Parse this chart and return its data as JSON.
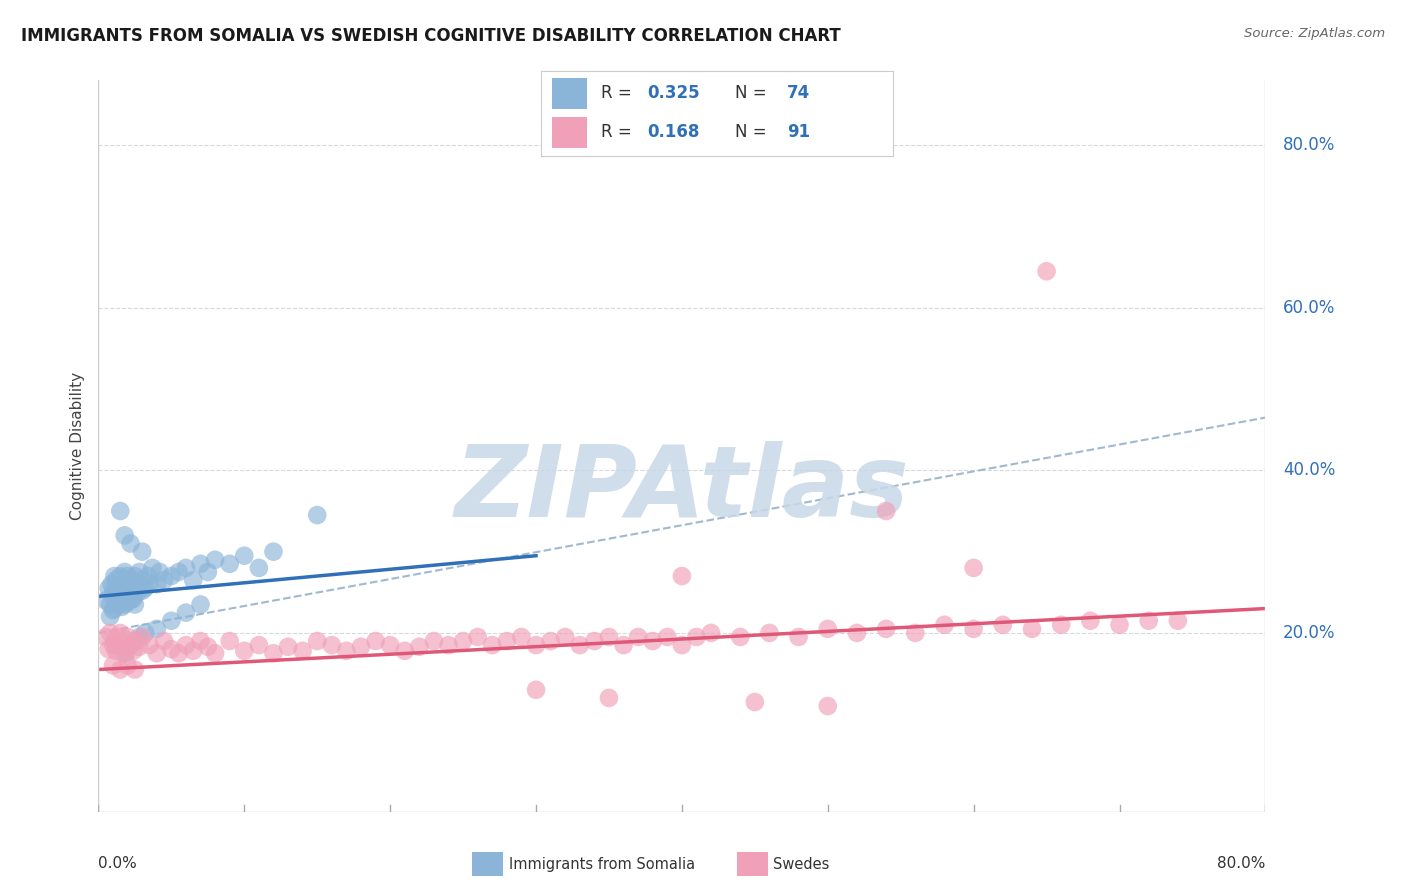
{
  "title": "IMMIGRANTS FROM SOMALIA VS SWEDISH COGNITIVE DISABILITY CORRELATION CHART",
  "source": "Source: ZipAtlas.com",
  "ylabel": "Cognitive Disability",
  "xmin": 0.0,
  "xmax": 0.8,
  "ymin": -0.02,
  "ymax": 0.88,
  "ytick_vals": [
    0.2,
    0.4,
    0.6,
    0.8
  ],
  "ytick_labels": [
    "20.0%",
    "40.0%",
    "60.0%",
    "80.0%"
  ],
  "blue_color": "#8ab4d8",
  "pink_color": "#f0a0b8",
  "blue_line_color": "#3070b8",
  "pink_line_color": "#e05878",
  "dash_color": "#a0b8d0",
  "legend_text_color": "#3070b8",
  "watermark_color": "#c8d8e8",
  "title_color": "#1a1a1a",
  "source_color": "#666666",
  "grid_color": "#d8d8e0",
  "axis_color": "#cccccc",
  "blue_line_x0": 0.0,
  "blue_line_y0": 0.245,
  "blue_line_x1": 0.3,
  "blue_line_y1": 0.295,
  "pink_line_x0": 0.0,
  "pink_line_y0": 0.155,
  "pink_line_x1": 0.8,
  "pink_line_y1": 0.23,
  "dash_line_x0": 0.0,
  "dash_line_y0": 0.2,
  "dash_line_x1": 0.8,
  "dash_line_y1": 0.465,
  "blue_x": [
    0.005,
    0.007,
    0.008,
    0.009,
    0.01,
    0.01,
    0.011,
    0.011,
    0.012,
    0.012,
    0.013,
    0.013,
    0.014,
    0.014,
    0.015,
    0.015,
    0.016,
    0.016,
    0.017,
    0.017,
    0.018,
    0.018,
    0.019,
    0.02,
    0.02,
    0.021,
    0.022,
    0.022,
    0.023,
    0.024,
    0.025,
    0.025,
    0.026,
    0.027,
    0.028,
    0.03,
    0.032,
    0.034,
    0.035,
    0.037,
    0.04,
    0.042,
    0.045,
    0.05,
    0.055,
    0.06,
    0.065,
    0.07,
    0.075,
    0.08,
    0.09,
    0.1,
    0.11,
    0.12,
    0.03,
    0.018,
    0.022,
    0.015,
    0.019,
    0.012,
    0.025,
    0.028,
    0.032,
    0.04,
    0.05,
    0.06,
    0.07,
    0.15,
    0.008,
    0.01,
    0.016,
    0.02,
    0.024,
    0.03
  ],
  "blue_y": [
    0.24,
    0.255,
    0.235,
    0.26,
    0.25,
    0.245,
    0.27,
    0.23,
    0.255,
    0.265,
    0.24,
    0.25,
    0.26,
    0.235,
    0.27,
    0.245,
    0.255,
    0.24,
    0.265,
    0.25,
    0.275,
    0.235,
    0.26,
    0.245,
    0.27,
    0.25,
    0.24,
    0.265,
    0.255,
    0.245,
    0.27,
    0.235,
    0.26,
    0.25,
    0.275,
    0.265,
    0.255,
    0.27,
    0.26,
    0.28,
    0.26,
    0.275,
    0.265,
    0.27,
    0.275,
    0.28,
    0.265,
    0.285,
    0.275,
    0.29,
    0.285,
    0.295,
    0.28,
    0.3,
    0.3,
    0.32,
    0.31,
    0.35,
    0.175,
    0.185,
    0.19,
    0.195,
    0.2,
    0.205,
    0.215,
    0.225,
    0.235,
    0.345,
    0.22,
    0.228,
    0.232,
    0.238,
    0.242,
    0.252
  ],
  "pink_x": [
    0.005,
    0.007,
    0.008,
    0.01,
    0.011,
    0.012,
    0.013,
    0.014,
    0.015,
    0.016,
    0.017,
    0.018,
    0.019,
    0.02,
    0.022,
    0.024,
    0.026,
    0.028,
    0.03,
    0.035,
    0.04,
    0.045,
    0.05,
    0.055,
    0.06,
    0.065,
    0.07,
    0.075,
    0.08,
    0.09,
    0.1,
    0.11,
    0.12,
    0.13,
    0.14,
    0.15,
    0.16,
    0.17,
    0.18,
    0.19,
    0.2,
    0.21,
    0.22,
    0.23,
    0.24,
    0.25,
    0.26,
    0.27,
    0.28,
    0.29,
    0.3,
    0.31,
    0.32,
    0.33,
    0.34,
    0.35,
    0.36,
    0.37,
    0.38,
    0.39,
    0.4,
    0.41,
    0.42,
    0.44,
    0.46,
    0.48,
    0.5,
    0.52,
    0.54,
    0.56,
    0.58,
    0.6,
    0.62,
    0.64,
    0.66,
    0.68,
    0.7,
    0.72,
    0.74,
    0.01,
    0.015,
    0.02,
    0.025,
    0.54,
    0.4,
    0.3,
    0.35,
    0.45,
    0.5,
    0.6,
    0.65
  ],
  "pink_y": [
    0.195,
    0.18,
    0.2,
    0.185,
    0.19,
    0.178,
    0.195,
    0.183,
    0.2,
    0.188,
    0.175,
    0.192,
    0.18,
    0.195,
    0.185,
    0.178,
    0.19,
    0.183,
    0.195,
    0.185,
    0.175,
    0.19,
    0.18,
    0.175,
    0.185,
    0.178,
    0.19,
    0.183,
    0.175,
    0.19,
    0.178,
    0.185,
    0.175,
    0.183,
    0.178,
    0.19,
    0.185,
    0.178,
    0.183,
    0.19,
    0.185,
    0.178,
    0.183,
    0.19,
    0.185,
    0.19,
    0.195,
    0.185,
    0.19,
    0.195,
    0.185,
    0.19,
    0.195,
    0.185,
    0.19,
    0.195,
    0.185,
    0.195,
    0.19,
    0.195,
    0.185,
    0.195,
    0.2,
    0.195,
    0.2,
    0.195,
    0.205,
    0.2,
    0.205,
    0.2,
    0.21,
    0.205,
    0.21,
    0.205,
    0.21,
    0.215,
    0.21,
    0.215,
    0.215,
    0.16,
    0.155,
    0.16,
    0.155,
    0.35,
    0.27,
    0.13,
    0.12,
    0.115,
    0.11,
    0.28,
    0.645
  ]
}
